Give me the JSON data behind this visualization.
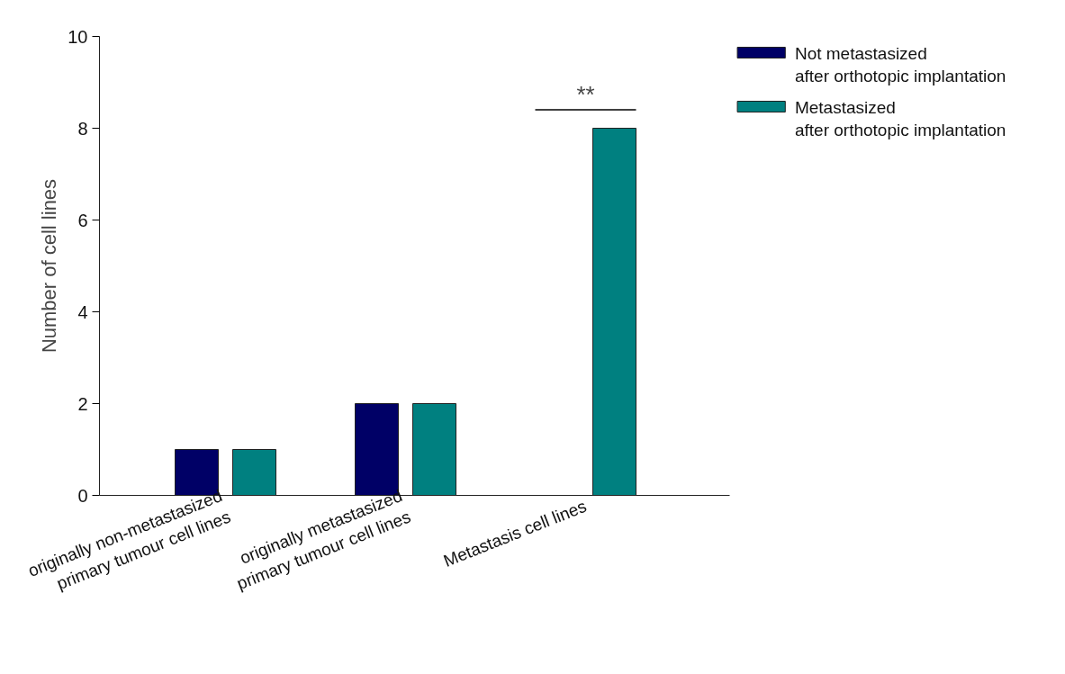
{
  "chart_data": {
    "type": "bar",
    "ylabel": "Number of cell lines",
    "categories": [
      "originally non-metastasized\nprimary tumour cell lines",
      "originally metastasized\nprimary tumour cell lines",
      "Metastasis cell lines"
    ],
    "series": [
      {
        "name": "Not metastasized\nafter orthotopic implantation",
        "color": "#000066",
        "values": [
          1,
          2,
          0
        ]
      },
      {
        "name": "Metastasized\nafter orthotopic implantation",
        "color": "#008080",
        "values": [
          1,
          2,
          8
        ]
      }
    ],
    "ylim": [
      0,
      10
    ],
    "yticks": [
      0,
      2,
      4,
      6,
      8,
      10
    ],
    "grid": false,
    "legend": "top right",
    "annotations": [
      "**"
    ]
  }
}
